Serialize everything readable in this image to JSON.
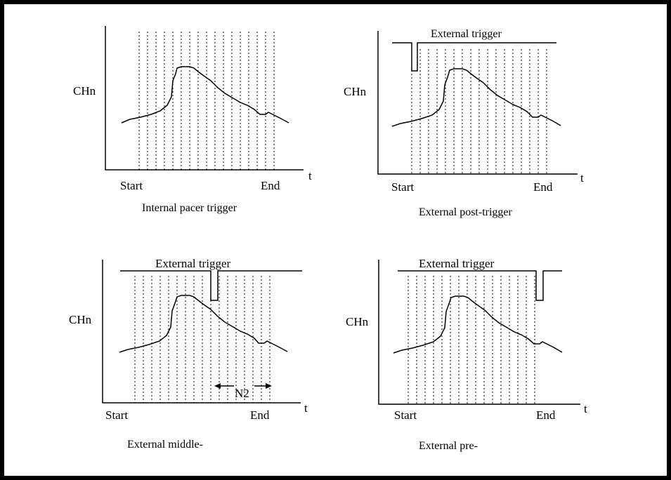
{
  "panels": [
    {
      "id": "internal",
      "ylabel": "CHn",
      "tlabel": "t",
      "start_label": "Start",
      "end_label": "End",
      "caption": "Internal pacer trigger",
      "trigger_label": null
    },
    {
      "id": "post",
      "ylabel": "CHn",
      "tlabel": "t",
      "start_label": "Start",
      "end_label": "End",
      "caption": "External post-trigger",
      "trigger_label": "External trigger"
    },
    {
      "id": "middle",
      "ylabel": "CHn",
      "tlabel": "t",
      "start_label": "Start",
      "end_label": "End",
      "caption": "External middle-",
      "trigger_label": "External trigger",
      "n2_label": "N2"
    },
    {
      "id": "pre",
      "ylabel": "CHn",
      "tlabel": "t",
      "start_label": "Start",
      "end_label": "End",
      "caption": "External pre-",
      "trigger_label": "External trigger"
    }
  ]
}
